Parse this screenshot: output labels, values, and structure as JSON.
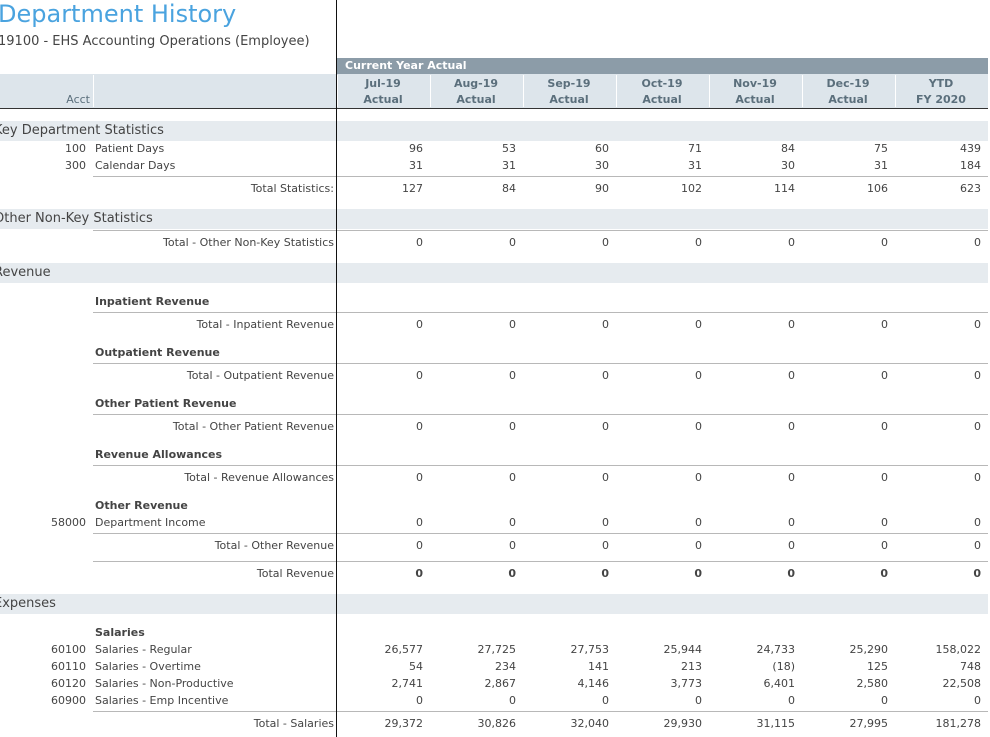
{
  "page": {
    "title": "Department History",
    "subtitle": "19100 - EHS Accounting Operations (Employee)"
  },
  "header": {
    "group_label": "Current Year Actual",
    "acct_label": "Acct",
    "columns": [
      {
        "top": "Jul-19",
        "bottom": "Actual"
      },
      {
        "top": "Aug-19",
        "bottom": "Actual"
      },
      {
        "top": "Sep-19",
        "bottom": "Actual"
      },
      {
        "top": "Oct-19",
        "bottom": "Actual"
      },
      {
        "top": "Nov-19",
        "bottom": "Actual"
      },
      {
        "top": "Dec-19",
        "bottom": "Actual"
      },
      {
        "top": "YTD",
        "bottom": "FY 2020"
      }
    ]
  },
  "sections": {
    "key_stats": {
      "title": "Key Department Statistics",
      "rows": [
        {
          "acct": "100",
          "label": "Patient Days",
          "values": [
            "96",
            "53",
            "60",
            "71",
            "84",
            "75",
            "439"
          ]
        },
        {
          "acct": "300",
          "label": "Calendar Days",
          "values": [
            "31",
            "31",
            "30",
            "31",
            "30",
            "31",
            "184"
          ]
        }
      ],
      "total": {
        "label": "Total Statistics:",
        "values": [
          "127",
          "84",
          "90",
          "102",
          "114",
          "106",
          "623"
        ]
      }
    },
    "other_stats": {
      "title": "Other Non-Key Statistics",
      "total": {
        "label": "Total - Other Non-Key Statistics",
        "values": [
          "0",
          "0",
          "0",
          "0",
          "0",
          "0",
          "0"
        ]
      }
    },
    "revenue": {
      "title": "Revenue",
      "inpatient": {
        "title": "Inpatient Revenue",
        "total": {
          "label": "Total - Inpatient Revenue",
          "values": [
            "0",
            "0",
            "0",
            "0",
            "0",
            "0",
            "0"
          ]
        }
      },
      "outpatient": {
        "title": "Outpatient Revenue",
        "total": {
          "label": "Total - Outpatient Revenue",
          "values": [
            "0",
            "0",
            "0",
            "0",
            "0",
            "0",
            "0"
          ]
        }
      },
      "other_patient": {
        "title": "Other Patient Revenue",
        "total": {
          "label": "Total - Other Patient Revenue",
          "values": [
            "0",
            "0",
            "0",
            "0",
            "0",
            "0",
            "0"
          ]
        }
      },
      "allowances": {
        "title": "Revenue Allowances",
        "total": {
          "label": "Total - Revenue Allowances",
          "values": [
            "0",
            "0",
            "0",
            "0",
            "0",
            "0",
            "0"
          ]
        }
      },
      "other": {
        "title": "Other Revenue",
        "rows": [
          {
            "acct": "58000",
            "label": "Department Income",
            "values": [
              "0",
              "0",
              "0",
              "0",
              "0",
              "0",
              "0"
            ]
          }
        ],
        "total": {
          "label": "Total - Other Revenue",
          "values": [
            "0",
            "0",
            "0",
            "0",
            "0",
            "0",
            "0"
          ]
        }
      },
      "grand_total": {
        "label": "Total Revenue",
        "values": [
          "0",
          "0",
          "0",
          "0",
          "0",
          "0",
          "0"
        ]
      }
    },
    "expenses": {
      "title": "Expenses",
      "salaries": {
        "title": "Salaries",
        "rows": [
          {
            "acct": "60100",
            "label": "Salaries - Regular",
            "values": [
              "26,577",
              "27,725",
              "27,753",
              "25,944",
              "24,733",
              "25,290",
              "158,022"
            ]
          },
          {
            "acct": "60110",
            "label": "Salaries - Overtime",
            "values": [
              "54",
              "234",
              "141",
              "213",
              "(18)",
              "125",
              "748"
            ]
          },
          {
            "acct": "60120",
            "label": "Salaries - Non-Productive",
            "values": [
              "2,741",
              "2,867",
              "4,146",
              "3,773",
              "6,401",
              "2,580",
              "22,508"
            ]
          },
          {
            "acct": "60900",
            "label": "Salaries - Emp Incentive",
            "values": [
              "0",
              "0",
              "0",
              "0",
              "0",
              "0",
              "0"
            ]
          }
        ],
        "total": {
          "label": "Total - Salaries",
          "values": [
            "29,372",
            "30,826",
            "32,040",
            "29,930",
            "31,115",
            "27,995",
            "181,278"
          ]
        }
      }
    }
  }
}
